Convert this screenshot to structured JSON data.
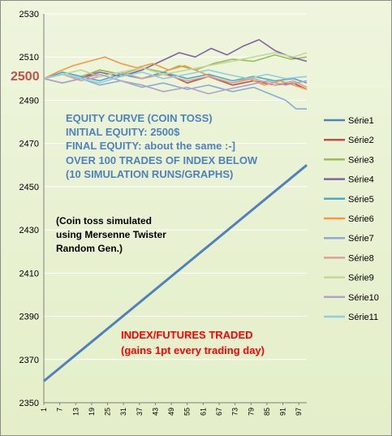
{
  "annotations": {
    "ref_label": "2500",
    "equity_lines": [
      "EQUITY CURVE (COIN TOSS)",
      "INITIAL EQUITY: 2500$",
      "FINAL EQUITY: about the same :-]",
      "OVER 100 TRADES OF INDEX BELOW",
      "(10  SIMULATION RUNS/GRAPHS)"
    ],
    "coin_lines": [
      "(Coin toss simulated",
      "using Mersenne Twister",
      "Random Gen.)"
    ],
    "index_lines": [
      "INDEX/FUTURES TRADED",
      "(gains 1pt every trading day)"
    ]
  },
  "colors": {
    "ref_label": "#c0504d",
    "equity_text": "#4f81bd",
    "index_text": "#ff0000"
  },
  "chart_data": {
    "type": "line",
    "title": "",
    "xlabel": "",
    "ylabel": "",
    "ylim": [
      2350,
      2530
    ],
    "yticks": [
      2350,
      2370,
      2390,
      2410,
      2430,
      2450,
      2470,
      2490,
      2510,
      2530
    ],
    "xticks": [
      1,
      7,
      13,
      19,
      25,
      31,
      37,
      43,
      49,
      55,
      61,
      67,
      73,
      79,
      85,
      91,
      97
    ],
    "x_range": [
      1,
      100
    ],
    "grid": "horizontal",
    "legend_position": "right",
    "series": [
      {
        "name": "Série1",
        "color": "#4f81bd",
        "width": 3,
        "points": [
          [
            1,
            2360
          ],
          [
            100,
            2460
          ]
        ]
      },
      {
        "name": "Série2",
        "color": "#c0504d",
        "width": 1.6,
        "points": [
          [
            1,
            2500
          ],
          [
            8,
            2502
          ],
          [
            15,
            2500
          ],
          [
            22,
            2504
          ],
          [
            30,
            2502
          ],
          [
            38,
            2500
          ],
          [
            46,
            2503
          ],
          [
            55,
            2498
          ],
          [
            63,
            2501
          ],
          [
            72,
            2497
          ],
          [
            80,
            2499
          ],
          [
            88,
            2497
          ],
          [
            95,
            2498
          ],
          [
            100,
            2495
          ]
        ]
      },
      {
        "name": "Série3",
        "color": "#9bbb59",
        "width": 1.6,
        "points": [
          [
            1,
            2500
          ],
          [
            8,
            2503
          ],
          [
            15,
            2501
          ],
          [
            22,
            2504
          ],
          [
            30,
            2502
          ],
          [
            38,
            2505
          ],
          [
            46,
            2503
          ],
          [
            52,
            2506
          ],
          [
            58,
            2504
          ],
          [
            65,
            2507
          ],
          [
            72,
            2509
          ],
          [
            80,
            2508
          ],
          [
            88,
            2511
          ],
          [
            94,
            2509
          ],
          [
            100,
            2510
          ]
        ]
      },
      {
        "name": "Série4",
        "color": "#8064a2",
        "width": 1.6,
        "points": [
          [
            1,
            2500
          ],
          [
            8,
            2502
          ],
          [
            15,
            2500
          ],
          [
            22,
            2503
          ],
          [
            30,
            2501
          ],
          [
            38,
            2504
          ],
          [
            45,
            2508
          ],
          [
            52,
            2512
          ],
          [
            58,
            2510
          ],
          [
            64,
            2514
          ],
          [
            70,
            2511
          ],
          [
            76,
            2515
          ],
          [
            82,
            2518
          ],
          [
            88,
            2513
          ],
          [
            94,
            2510
          ],
          [
            100,
            2508
          ]
        ]
      },
      {
        "name": "Série5",
        "color": "#4bacc6",
        "width": 1.6,
        "points": [
          [
            1,
            2500
          ],
          [
            8,
            2503
          ],
          [
            15,
            2501
          ],
          [
            22,
            2499
          ],
          [
            30,
            2502
          ],
          [
            38,
            2500
          ],
          [
            46,
            2503
          ],
          [
            55,
            2500
          ],
          [
            63,
            2502
          ],
          [
            72,
            2499
          ],
          [
            80,
            2501
          ],
          [
            88,
            2499
          ],
          [
            95,
            2500
          ],
          [
            100,
            2498
          ]
        ]
      },
      {
        "name": "Série6",
        "color": "#f79646",
        "width": 1.6,
        "points": [
          [
            1,
            2500
          ],
          [
            6,
            2503
          ],
          [
            12,
            2506
          ],
          [
            18,
            2508
          ],
          [
            24,
            2510
          ],
          [
            30,
            2507
          ],
          [
            36,
            2505
          ],
          [
            42,
            2507
          ],
          [
            48,
            2504
          ],
          [
            54,
            2506
          ],
          [
            60,
            2503
          ],
          [
            66,
            2500
          ],
          [
            72,
            2498
          ],
          [
            78,
            2500
          ],
          [
            84,
            2497
          ],
          [
            90,
            2499
          ],
          [
            95,
            2497
          ],
          [
            100,
            2495
          ]
        ]
      },
      {
        "name": "Série7",
        "color": "#8fa9d6",
        "width": 1.6,
        "points": [
          [
            1,
            2500
          ],
          [
            8,
            2498
          ],
          [
            15,
            2500
          ],
          [
            22,
            2497
          ],
          [
            30,
            2499
          ],
          [
            38,
            2496
          ],
          [
            46,
            2498
          ],
          [
            55,
            2495
          ],
          [
            63,
            2497
          ],
          [
            72,
            2494
          ],
          [
            80,
            2496
          ],
          [
            86,
            2493
          ],
          [
            92,
            2490
          ],
          [
            96,
            2486
          ],
          [
            100,
            2486
          ]
        ]
      },
      {
        "name": "Série8",
        "color": "#dca09b",
        "width": 1.6,
        "points": [
          [
            1,
            2500
          ],
          [
            8,
            2502
          ],
          [
            15,
            2499
          ],
          [
            22,
            2501
          ],
          [
            30,
            2503
          ],
          [
            38,
            2500
          ],
          [
            46,
            2502
          ],
          [
            55,
            2499
          ],
          [
            63,
            2501
          ],
          [
            72,
            2498
          ],
          [
            80,
            2500
          ],
          [
            88,
            2497
          ],
          [
            95,
            2499
          ],
          [
            100,
            2496
          ]
        ]
      },
      {
        "name": "Série9",
        "color": "#c3d69b",
        "width": 1.6,
        "points": [
          [
            1,
            2500
          ],
          [
            8,
            2502
          ],
          [
            15,
            2504
          ],
          [
            22,
            2501
          ],
          [
            30,
            2503
          ],
          [
            38,
            2505
          ],
          [
            46,
            2502
          ],
          [
            55,
            2504
          ],
          [
            63,
            2506
          ],
          [
            72,
            2508
          ],
          [
            80,
            2510
          ],
          [
            88,
            2512
          ],
          [
            95,
            2510
          ],
          [
            100,
            2512
          ]
        ]
      },
      {
        "name": "Série10",
        "color": "#b2a2c7",
        "width": 1.6,
        "points": [
          [
            1,
            2500
          ],
          [
            8,
            2498
          ],
          [
            15,
            2500
          ],
          [
            22,
            2502
          ],
          [
            30,
            2499
          ],
          [
            38,
            2497
          ],
          [
            46,
            2494
          ],
          [
            55,
            2496
          ],
          [
            63,
            2493
          ],
          [
            70,
            2495
          ],
          [
            78,
            2497
          ],
          [
            85,
            2499
          ],
          [
            92,
            2497
          ],
          [
            100,
            2499
          ]
        ]
      },
      {
        "name": "Série11",
        "color": "#93cddd",
        "width": 1.6,
        "points": [
          [
            1,
            2500
          ],
          [
            8,
            2502
          ],
          [
            15,
            2500
          ],
          [
            22,
            2498
          ],
          [
            30,
            2501
          ],
          [
            38,
            2503
          ],
          [
            46,
            2500
          ],
          [
            55,
            2502
          ],
          [
            63,
            2504
          ],
          [
            70,
            2502
          ],
          [
            78,
            2500
          ],
          [
            85,
            2502
          ],
          [
            92,
            2500
          ],
          [
            100,
            2501
          ]
        ]
      }
    ]
  }
}
